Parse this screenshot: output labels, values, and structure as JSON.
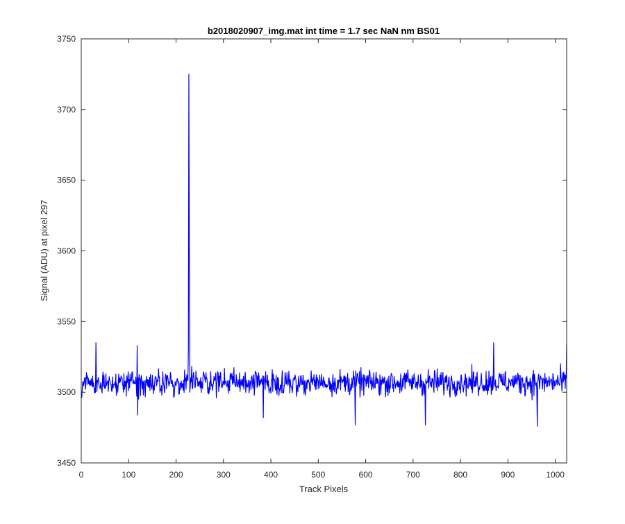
{
  "chart_data": {
    "type": "line",
    "title": "b2018020907_img.mat int time = 1.7 sec  NaN nm BS01",
    "xlabel": "Track Pixels",
    "ylabel": "Signal (ADU) at pixel 297",
    "xlim": [
      0,
      1024
    ],
    "ylim": [
      3450,
      3750
    ],
    "xticks": [
      0,
      100,
      200,
      300,
      400,
      500,
      600,
      700,
      800,
      900,
      1000
    ],
    "yticks": [
      3450,
      3500,
      3550,
      3600,
      3650,
      3700,
      3750
    ],
    "grid": false,
    "legend": "none",
    "series": [
      {
        "color": "#0000ff",
        "baseline": 3507,
        "noise_amplitude": 8,
        "x_start": 1,
        "x_end": 1024,
        "points": [
          {
            "x": 1,
            "y": 3496
          },
          {
            "x": 31,
            "y": 3535
          },
          {
            "x": 118,
            "y": 3533
          },
          {
            "x": 119,
            "y": 3484
          },
          {
            "x": 226,
            "y": 3530
          },
          {
            "x": 227,
            "y": 3725
          },
          {
            "x": 228,
            "y": 3600
          },
          {
            "x": 229,
            "y": 3500
          },
          {
            "x": 384,
            "y": 3482
          },
          {
            "x": 578,
            "y": 3477
          },
          {
            "x": 726,
            "y": 3477
          },
          {
            "x": 870,
            "y": 3535
          },
          {
            "x": 962,
            "y": 3476
          },
          {
            "x": 1024,
            "y": 3534
          }
        ]
      }
    ]
  },
  "colors": {
    "axis": "#262626",
    "series": "#0000ff",
    "background": "#ffffff"
  }
}
